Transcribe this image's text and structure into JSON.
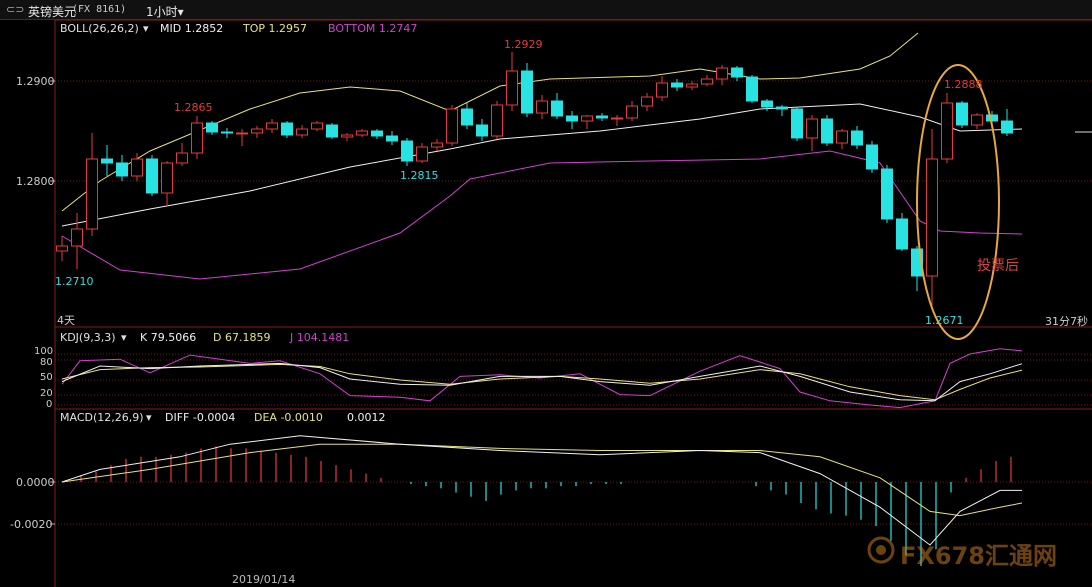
{
  "header": {
    "symbol": "英镑美元",
    "code": "(FX 8161)",
    "timeframe": "1小时",
    "chevron": "▾"
  },
  "indicators": {
    "boll_name": "BOLL(26,26,2)",
    "boll_mid": "MID 1.2852",
    "boll_top": "TOP 1.2957",
    "boll_bottom": "BOTTOM 1.2747",
    "kdj_name": "KDJ(9,3,3)",
    "kdj_k": "K 79.5066",
    "kdj_d": "D 67.1859",
    "kdj_j": "J 104.1481",
    "macd_name": "MACD(12,26,9)",
    "macd_diff": "DIFF -0.0004",
    "macd_dea": "DEA -0.0010",
    "macd_val": "0.0012"
  },
  "labels": {
    "period": "4天",
    "countdown": "31分7秒",
    "date": "2019/01/14",
    "annotation": "投票后",
    "watermark": "FX678汇通网"
  },
  "colors": {
    "up": "#e83a3a",
    "down": "#29e2e2",
    "boll_mid": "#f0f0f0",
    "boll_top": "#e8e27a",
    "boll_bottom": "#d43fd4",
    "k": "#f0f0f0",
    "d": "#e8e27a",
    "j": "#d43fd4",
    "ellipse": "#e6a93a"
  },
  "chart_data": {
    "type": "candlestick",
    "price_axis": {
      "ticks": [
        "1.2900",
        "1.2800"
      ],
      "ylim": [
        1.2648,
        1.296
      ]
    },
    "kdj_axis": {
      "ticks": [
        "100",
        "80",
        "50",
        "20",
        "0"
      ]
    },
    "macd_axis": {
      "ticks": [
        "0.0000",
        "-0.0020"
      ]
    },
    "price_annotations": [
      "1.2865",
      "1.2929",
      "1.2888",
      "1.2815",
      "1.2710",
      "1.2671"
    ],
    "candles": [
      [
        1.273,
        1.2745,
        1.272,
        1.2735
      ],
      [
        1.2735,
        1.2768,
        1.2712,
        1.2752
      ],
      [
        1.2752,
        1.2848,
        1.2745,
        1.2822
      ],
      [
        1.2822,
        1.2836,
        1.2805,
        1.2818
      ],
      [
        1.2818,
        1.2826,
        1.28,
        1.2805
      ],
      [
        1.2805,
        1.2828,
        1.28,
        1.2822
      ],
      [
        1.2822,
        1.2826,
        1.2785,
        1.2788
      ],
      [
        1.2788,
        1.282,
        1.2775,
        1.2818
      ],
      [
        1.2818,
        1.2838,
        1.2815,
        1.2828
      ],
      [
        1.2828,
        1.2865,
        1.2822,
        1.2858
      ],
      [
        1.2858,
        1.286,
        1.2846,
        1.2849
      ],
      [
        1.2849,
        1.2853,
        1.2843,
        1.2848
      ],
      [
        1.2848,
        1.2852,
        1.2835,
        1.2848
      ],
      [
        1.2848,
        1.2855,
        1.2843,
        1.2852
      ],
      [
        1.2852,
        1.2862,
        1.2848,
        1.2858
      ],
      [
        1.2858,
        1.286,
        1.2843,
        1.2846
      ],
      [
        1.2846,
        1.2856,
        1.2843,
        1.2852
      ],
      [
        1.2852,
        1.286,
        1.285,
        1.2858
      ],
      [
        1.2856,
        1.2858,
        1.2842,
        1.2844
      ],
      [
        1.2844,
        1.2848,
        1.284,
        1.2846
      ],
      [
        1.2846,
        1.2852,
        1.2844,
        1.285
      ],
      [
        1.285,
        1.2852,
        1.2842,
        1.2845
      ],
      [
        1.2845,
        1.285,
        1.2836,
        1.284
      ],
      [
        1.284,
        1.2843,
        1.2815,
        1.282
      ],
      [
        1.282,
        1.2838,
        1.2818,
        1.2834
      ],
      [
        1.2834,
        1.2842,
        1.283,
        1.2838
      ],
      [
        1.2838,
        1.2876,
        1.2835,
        1.2872
      ],
      [
        1.2872,
        1.2878,
        1.2852,
        1.2856
      ],
      [
        1.2856,
        1.2862,
        1.284,
        1.2845
      ],
      [
        1.2845,
        1.288,
        1.2842,
        1.2876
      ],
      [
        1.2876,
        1.2929,
        1.287,
        1.291
      ],
      [
        1.291,
        1.2918,
        1.2864,
        1.2868
      ],
      [
        1.2868,
        1.2886,
        1.2862,
        1.288
      ],
      [
        1.288,
        1.2888,
        1.2862,
        1.2865
      ],
      [
        1.2865,
        1.287,
        1.2852,
        1.286
      ],
      [
        1.286,
        1.2866,
        1.2852,
        1.2865
      ],
      [
        1.2865,
        1.2868,
        1.286,
        1.2863
      ],
      [
        1.2863,
        1.2866,
        1.2855,
        1.2863
      ],
      [
        1.2863,
        1.288,
        1.286,
        1.2875
      ],
      [
        1.2875,
        1.2888,
        1.287,
        1.2884
      ],
      [
        1.2884,
        1.2905,
        1.288,
        1.2898
      ],
      [
        1.2898,
        1.2902,
        1.289,
        1.2894
      ],
      [
        1.2894,
        1.29,
        1.2891,
        1.2897
      ],
      [
        1.2897,
        1.2906,
        1.2895,
        1.2902
      ],
      [
        1.2902,
        1.2916,
        1.2896,
        1.2913
      ],
      [
        1.2913,
        1.2915,
        1.29,
        1.2904
      ],
      [
        1.2904,
        1.2906,
        1.2878,
        1.288
      ],
      [
        1.288,
        1.2882,
        1.287,
        1.2874
      ],
      [
        1.2874,
        1.2876,
        1.2865,
        1.2872
      ],
      [
        1.2872,
        1.2873,
        1.284,
        1.2843
      ],
      [
        1.2843,
        1.2866,
        1.283,
        1.2862
      ],
      [
        1.2862,
        1.2866,
        1.2835,
        1.2838
      ],
      [
        1.2838,
        1.2852,
        1.2832,
        1.285
      ],
      [
        1.285,
        1.2855,
        1.2832,
        1.2836
      ],
      [
        1.2836,
        1.284,
        1.2808,
        1.2812
      ],
      [
        1.2812,
        1.2816,
        1.2758,
        1.2762
      ],
      [
        1.2762,
        1.2768,
        1.273,
        1.2732
      ],
      [
        1.2732,
        1.2735,
        1.269,
        1.2705
      ],
      [
        1.2705,
        1.2852,
        1.2671,
        1.2822
      ],
      [
        1.2822,
        1.2888,
        1.2818,
        1.2878
      ],
      [
        1.2878,
        1.288,
        1.2853,
        1.2856
      ],
      [
        1.2856,
        1.2868,
        1.2852,
        1.2866
      ],
      [
        1.2866,
        1.287,
        1.2854,
        1.286
      ],
      [
        1.286,
        1.2872,
        1.2845,
        1.2848
      ]
    ],
    "boll": {
      "mid": [
        [
          62,
          1.2755
        ],
        [
          150,
          1.2772
        ],
        [
          250,
          1.279
        ],
        [
          350,
          1.2814
        ],
        [
          450,
          1.2832
        ],
        [
          500,
          1.2842
        ],
        [
          600,
          1.285
        ],
        [
          700,
          1.2862
        ],
        [
          760,
          1.2872
        ],
        [
          860,
          1.2877
        ],
        [
          920,
          1.2864
        ],
        [
          960,
          1.285
        ],
        [
          1022,
          1.2852
        ]
      ],
      "top": [
        [
          62,
          1.277
        ],
        [
          100,
          1.28
        ],
        [
          150,
          1.283
        ],
        [
          250,
          1.2872
        ],
        [
          300,
          1.2888
        ],
        [
          350,
          1.2894
        ],
        [
          400,
          1.289
        ],
        [
          450,
          1.287
        ],
        [
          500,
          1.2895
        ],
        [
          550,
          1.2902
        ],
        [
          650,
          1.2905
        ],
        [
          700,
          1.2912
        ],
        [
          760,
          1.2902
        ],
        [
          800,
          1.2903
        ],
        [
          860,
          1.2912
        ],
        [
          890,
          1.2925
        ],
        [
          918,
          1.2948
        ]
      ],
      "bottom": [
        [
          62,
          1.2745
        ],
        [
          120,
          1.2711
        ],
        [
          200,
          1.2702
        ],
        [
          300,
          1.2712
        ],
        [
          400,
          1.2748
        ],
        [
          450,
          1.2785
        ],
        [
          470,
          1.2802
        ],
        [
          550,
          1.2818
        ],
        [
          650,
          1.282
        ],
        [
          760,
          1.2822
        ],
        [
          830,
          1.283
        ],
        [
          880,
          1.2818
        ],
        [
          920,
          1.276
        ],
        [
          940,
          1.275
        ],
        [
          980,
          1.2748
        ],
        [
          1022,
          1.2747
        ]
      ]
    },
    "kdj": {
      "k": [
        [
          62,
          45
        ],
        [
          100,
          75
        ],
        [
          150,
          70
        ],
        [
          200,
          75
        ],
        [
          280,
          80
        ],
        [
          320,
          72
        ],
        [
          350,
          50
        ],
        [
          400,
          40
        ],
        [
          450,
          38
        ],
        [
          500,
          55
        ],
        [
          560,
          55
        ],
        [
          600,
          45
        ],
        [
          650,
          38
        ],
        [
          700,
          55
        ],
        [
          760,
          75
        ],
        [
          800,
          55
        ],
        [
          850,
          25
        ],
        [
          900,
          10
        ],
        [
          935,
          8
        ],
        [
          960,
          45
        ],
        [
          990,
          60
        ],
        [
          1022,
          79.5
        ]
      ],
      "d": [
        [
          62,
          50
        ],
        [
          100,
          68
        ],
        [
          150,
          72
        ],
        [
          200,
          73
        ],
        [
          280,
          78
        ],
        [
          320,
          74
        ],
        [
          350,
          60
        ],
        [
          400,
          48
        ],
        [
          450,
          40
        ],
        [
          500,
          50
        ],
        [
          560,
          55
        ],
        [
          600,
          50
        ],
        [
          650,
          42
        ],
        [
          700,
          50
        ],
        [
          760,
          68
        ],
        [
          800,
          60
        ],
        [
          850,
          35
        ],
        [
          900,
          18
        ],
        [
          935,
          10
        ],
        [
          960,
          30
        ],
        [
          990,
          52
        ],
        [
          1022,
          67.2
        ]
      ],
      "j": [
        [
          62,
          40
        ],
        [
          80,
          85
        ],
        [
          120,
          88
        ],
        [
          150,
          62
        ],
        [
          190,
          96
        ],
        [
          250,
          80
        ],
        [
          280,
          85
        ],
        [
          320,
          60
        ],
        [
          350,
          18
        ],
        [
          400,
          15
        ],
        [
          430,
          8
        ],
        [
          460,
          55
        ],
        [
          500,
          58
        ],
        [
          540,
          52
        ],
        [
          580,
          60
        ],
        [
          620,
          20
        ],
        [
          650,
          18
        ],
        [
          700,
          65
        ],
        [
          740,
          95
        ],
        [
          780,
          70
        ],
        [
          800,
          25
        ],
        [
          830,
          8
        ],
        [
          870,
          0
        ],
        [
          900,
          -5
        ],
        [
          935,
          8
        ],
        [
          950,
          80
        ],
        [
          970,
          98
        ],
        [
          1000,
          108
        ],
        [
          1022,
          104.1
        ]
      ]
    },
    "macd": {
      "diff": [
        [
          62,
          0.0
        ],
        [
          100,
          0.0006
        ],
        [
          180,
          0.0012
        ],
        [
          230,
          0.0018
        ],
        [
          300,
          0.0022
        ],
        [
          400,
          0.0018
        ],
        [
          500,
          0.0015
        ],
        [
          600,
          0.0013
        ],
        [
          700,
          0.0015
        ],
        [
          760,
          0.0014
        ],
        [
          820,
          0.0004
        ],
        [
          880,
          -0.0012
        ],
        [
          930,
          -0.003
        ],
        [
          960,
          -0.0014
        ],
        [
          1000,
          -0.0004
        ],
        [
          1022,
          -0.0004
        ]
      ],
      "dea": [
        [
          62,
          0.0
        ],
        [
          150,
          0.0006
        ],
        [
          250,
          0.0014
        ],
        [
          320,
          0.0018
        ],
        [
          400,
          0.0018
        ],
        [
          500,
          0.0016
        ],
        [
          600,
          0.0015
        ],
        [
          700,
          0.0015
        ],
        [
          760,
          0.0015
        ],
        [
          820,
          0.0012
        ],
        [
          880,
          0.0002
        ],
        [
          930,
          -0.0014
        ],
        [
          960,
          -0.0016
        ],
        [
          1000,
          -0.0012
        ],
        [
          1022,
          -0.001
        ]
      ],
      "hist": [
        0.0001,
        0.0003,
        0.0005,
        0.0008,
        0.0011,
        0.0012,
        0.0012,
        0.0013,
        0.0014,
        0.0016,
        0.0017,
        0.0016,
        0.0016,
        0.0015,
        0.0014,
        0.0013,
        0.0012,
        0.001,
        0.0008,
        0.0006,
        0.0004,
        0.0002,
        0.0,
        -0.0001,
        -0.0002,
        -0.0003,
        -0.0005,
        -0.0007,
        -0.0009,
        -0.0006,
        -0.0004,
        -0.0003,
        -0.0003,
        -0.0002,
        -0.0002,
        -0.0001,
        -0.0001,
        -0.0001,
        0.0,
        0.0,
        0.0,
        0.0,
        0.0,
        0.0,
        0.0,
        0.0,
        -0.0002,
        -0.0004,
        -0.0006,
        -0.001,
        -0.0013,
        -0.0015,
        -0.0016,
        -0.0018,
        -0.0021,
        -0.0028,
        -0.0035,
        -0.004,
        -0.0032,
        -0.0005,
        0.0002,
        0.0006,
        0.001,
        0.0012
      ]
    }
  }
}
